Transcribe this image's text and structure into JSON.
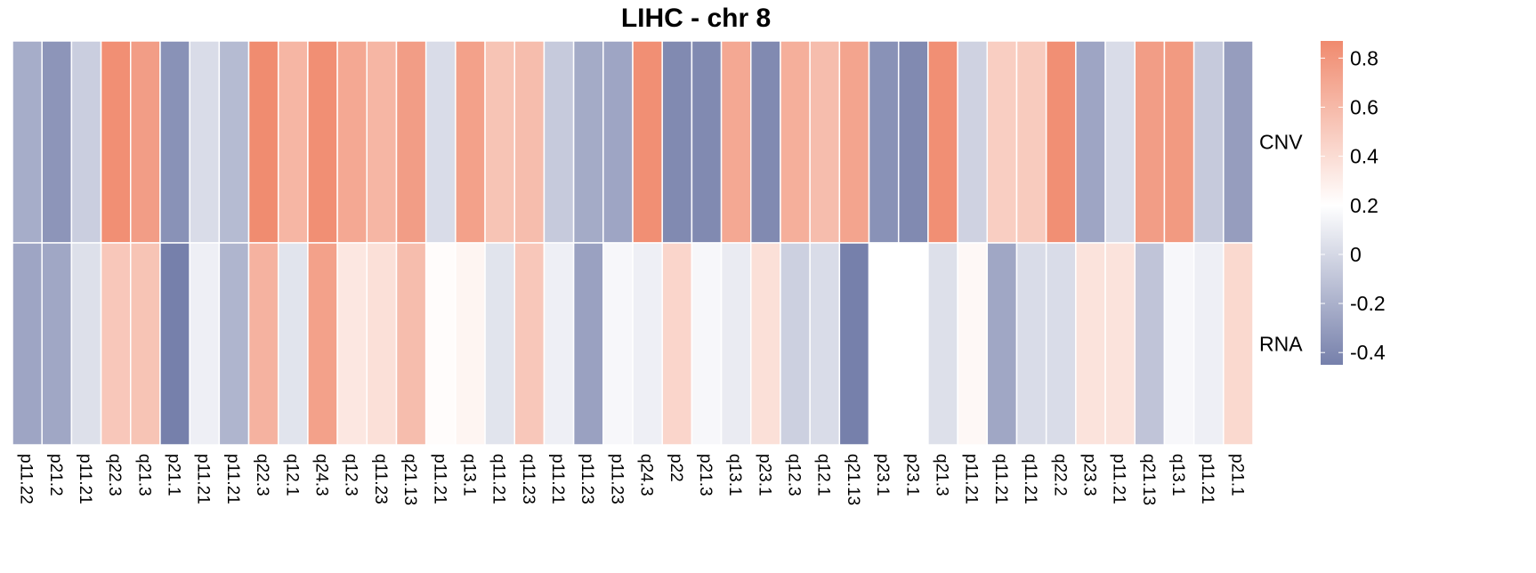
{
  "chart_data": {
    "type": "heatmap",
    "title": "LIHC - chr 8",
    "rows": [
      "CNV",
      "RNA"
    ],
    "columns": [
      "p11.22",
      "p21.2",
      "p11.21",
      "q22.3",
      "q21.3",
      "p21.1",
      "p11.21",
      "p11.21",
      "q22.3",
      "q12.1",
      "q24.3",
      "q12.3",
      "q11.23",
      "q21.13",
      "p11.21",
      "q13.1",
      "q11.21",
      "q11.23",
      "p11.21",
      "p11.23",
      "p11.23",
      "q24.3",
      "p22",
      "p21.3",
      "q13.1",
      "p23.1",
      "q12.3",
      "q12.1",
      "q21.13",
      "p23.1",
      "p23.1",
      "q21.3",
      "p11.21",
      "q11.21",
      "q11.21",
      "q22.2",
      "p23.3",
      "p11.21",
      "q21.13",
      "q13.1",
      "p11.21",
      "p21.1"
    ],
    "values": {
      "CNV": [
        -0.22,
        -0.34,
        -0.05,
        0.84,
        0.76,
        -0.36,
        0.02,
        -0.15,
        0.86,
        0.62,
        0.84,
        0.7,
        0.62,
        0.76,
        0.02,
        0.74,
        0.54,
        0.58,
        -0.07,
        -0.23,
        -0.26,
        0.84,
        -0.4,
        -0.4,
        0.7,
        -0.4,
        0.66,
        0.58,
        0.72,
        -0.36,
        -0.4,
        0.84,
        -0.03,
        0.48,
        0.5,
        0.84,
        -0.26,
        0.02,
        0.76,
        0.78,
        -0.07,
        -0.3
      ],
      "RNA": [
        -0.26,
        -0.25,
        0.04,
        0.52,
        0.54,
        -0.48,
        0.12,
        -0.18,
        0.64,
        0.06,
        0.74,
        0.34,
        0.38,
        0.58,
        0.22,
        0.26,
        0.06,
        0.52,
        0.12,
        -0.28,
        0.16,
        0.12,
        0.44,
        0.16,
        0.1,
        0.38,
        -0.04,
        0.02,
        -0.48,
        0.2,
        0.2,
        0.04,
        0.24,
        -0.25,
        0.02,
        0.02,
        0.36,
        0.36,
        -0.1,
        0.16,
        0.12,
        0.42
      ]
    },
    "color_scale": {
      "low_value": -0.45,
      "mid_value": 0.2,
      "high_value": 0.87,
      "low_color": "#7680ab",
      "mid_color": "#ffffff",
      "high_color": "#f08a6e"
    },
    "legend": {
      "position": "right",
      "ticks": [
        0.8,
        0.6,
        0.4,
        0.2,
        0,
        -0.2,
        -0.4
      ],
      "tick_labels": [
        "0.8",
        "0.6",
        "0.4",
        "0.2",
        "0",
        "-0.2",
        "-0.4"
      ]
    }
  }
}
